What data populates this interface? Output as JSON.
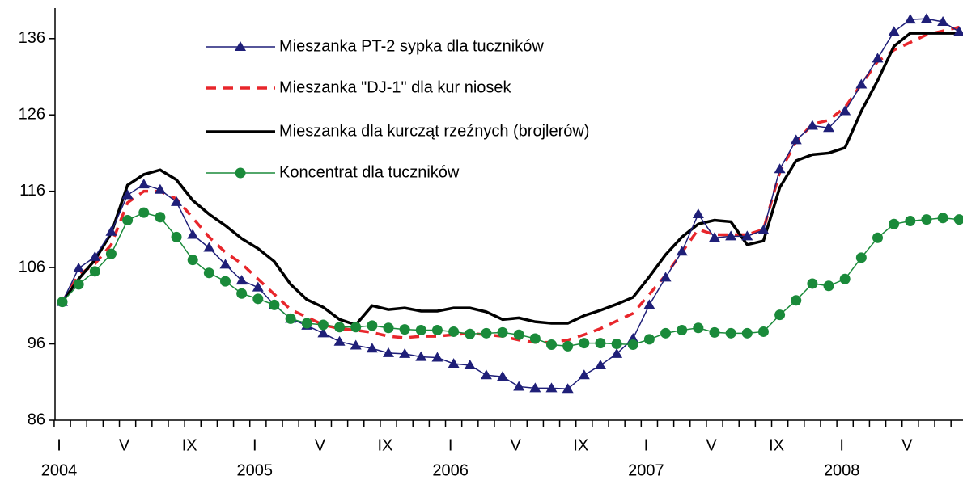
{
  "chart_data": {
    "type": "line",
    "categories": [
      "I",
      null,
      null,
      null,
      "V",
      null,
      null,
      null,
      "IX",
      null,
      null,
      null,
      "I",
      null,
      null,
      null,
      "V",
      null,
      null,
      null,
      "IX",
      null,
      null,
      null,
      "I",
      null,
      null,
      null,
      "V",
      null,
      null,
      null,
      "IX",
      null,
      null,
      null,
      "I",
      null,
      null,
      null,
      "V",
      null,
      null,
      null,
      "IX",
      null,
      null,
      null,
      "I",
      null,
      null,
      null,
      "V",
      null,
      null,
      null
    ],
    "years": [
      "2004",
      null,
      null,
      null,
      null,
      null,
      null,
      null,
      null,
      null,
      null,
      null,
      "2005",
      null,
      null,
      null,
      null,
      null,
      null,
      null,
      null,
      null,
      null,
      null,
      "2006",
      null,
      null,
      null,
      null,
      null,
      null,
      null,
      null,
      null,
      null,
      null,
      "2007",
      null,
      null,
      null,
      null,
      null,
      null,
      null,
      null,
      null,
      null,
      null,
      "2008",
      null,
      null,
      null,
      null,
      null,
      null,
      null
    ],
    "ylim": [
      86,
      140
    ],
    "yticks": [
      86,
      96,
      106,
      116,
      126,
      136
    ],
    "grid": false,
    "legend": "upper left",
    "series": [
      {
        "name": "Mieszanka PT-2 sypka dla tuczników",
        "color": "#1f1f78",
        "marker": "triangle",
        "dash": false,
        "values": [
          101.5,
          105.9,
          107.4,
          110.7,
          115.5,
          116.9,
          116.2,
          114.6,
          110.3,
          108.6,
          106.4,
          104.3,
          103.4,
          101.1,
          99.3,
          98.4,
          97.4,
          96.3,
          95.8,
          95.4,
          94.8,
          94.7,
          94.3,
          94.2,
          93.4,
          93.2,
          91.9,
          91.7,
          90.4,
          90.2,
          90.2,
          90.1,
          91.9,
          93.2,
          94.7,
          96.7,
          101.1,
          104.7,
          108.1,
          113.0,
          109.9,
          110.1,
          110.1,
          110.9,
          118.9,
          122.7,
          124.6,
          124.3,
          126.5,
          130.0,
          133.4,
          136.9,
          138.5,
          138.6,
          138.2,
          136.9
        ]
      },
      {
        "name": "Mieszanka \"DJ-1\" dla kur niosek",
        "color": "#e8262b",
        "marker": "none",
        "dash": true,
        "values": [
          101.5,
          105,
          106.5,
          109,
          114.5,
          116,
          116,
          115,
          112.5,
          110,
          108,
          106.5,
          104.5,
          102.5,
          100.5,
          99.5,
          98.5,
          98,
          97.8,
          97.5,
          97,
          96.8,
          97,
          97,
          97.2,
          97.4,
          97.2,
          97,
          96.5,
          96.2,
          96.2,
          96.5,
          97.2,
          98,
          99,
          100,
          102.5,
          105,
          108,
          111,
          110.3,
          110.3,
          110.3,
          111,
          118.5,
          122.5,
          124.8,
          125.3,
          127,
          130,
          133,
          134.5,
          135.5,
          136.5,
          137,
          137.5
        ]
      },
      {
        "name": "Mieszanka dla kurcząt rzeźnych (brojlerów)",
        "color": "#000000",
        "marker": "none",
        "dash": false,
        "values": [
          101.5,
          104.5,
          107,
          110.5,
          116.8,
          118.2,
          118.8,
          117.5,
          114.8,
          113,
          111.5,
          109.8,
          108.5,
          106.8,
          103.8,
          101.8,
          100.8,
          99.2,
          98.5,
          101,
          100.5,
          100.7,
          100.3,
          100.3,
          100.7,
          100.7,
          100.2,
          99.2,
          99.4,
          98.9,
          98.7,
          98.7,
          99.7,
          100.4,
          101.2,
          102.1,
          104.8,
          107.7,
          110,
          111.7,
          112.2,
          112,
          109,
          109.5,
          116.5,
          120,
          120.8,
          121,
          121.7,
          126.5,
          130.5,
          135,
          136.7,
          136.7,
          136.7,
          136.7
        ]
      },
      {
        "name": "Koncentrat dla tuczników",
        "color": "#1a8a3a",
        "marker": "circle",
        "dash": false,
        "values": [
          101.5,
          103.8,
          105.5,
          107.8,
          112.2,
          113.2,
          112.6,
          110,
          107,
          105.3,
          104.2,
          102.6,
          101.9,
          101.1,
          99.3,
          98.7,
          98.5,
          98.2,
          98.2,
          98.4,
          98.1,
          97.9,
          97.8,
          97.8,
          97.6,
          97.3,
          97.4,
          97.5,
          97.2,
          96.7,
          95.9,
          95.7,
          96.1,
          96.1,
          96,
          95.9,
          96.6,
          97.4,
          97.8,
          98.1,
          97.5,
          97.4,
          97.4,
          97.6,
          99.8,
          101.7,
          103.9,
          103.6,
          104.5,
          107.3,
          109.9,
          111.7,
          112.1,
          112.3,
          112.5,
          112.3
        ]
      }
    ]
  }
}
